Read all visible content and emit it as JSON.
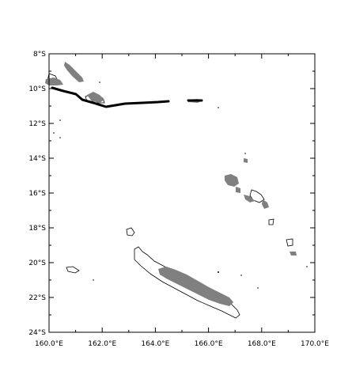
{
  "map": {
    "lon_range": [
      160,
      170
    ],
    "lat_range": [
      -24,
      -8
    ],
    "lon_ticks": [
      {
        "value": 160,
        "label": "160.0°E"
      },
      {
        "value": 162,
        "label": "162.0°E"
      },
      {
        "value": 164,
        "label": "164.0°E"
      },
      {
        "value": 166,
        "label": "166.0°E"
      },
      {
        "value": 168,
        "label": "168.0°E"
      },
      {
        "value": 170,
        "label": "170.0°E"
      }
    ],
    "lat_ticks": [
      {
        "value": -8,
        "label": "8°S"
      },
      {
        "value": -10,
        "label": "10°S"
      },
      {
        "value": -12,
        "label": "12°S"
      },
      {
        "value": -14,
        "label": "14°S"
      },
      {
        "value": -16,
        "label": "16°S"
      },
      {
        "value": -18,
        "label": "18°S"
      },
      {
        "value": -20,
        "label": "20°S"
      },
      {
        "value": -22,
        "label": "22°S"
      },
      {
        "value": -24,
        "label": "24°S"
      }
    ],
    "colors": {
      "land_fill": "#808080",
      "coastline": "#000000",
      "track": "#000000",
      "frame": "#000000"
    }
  }
}
